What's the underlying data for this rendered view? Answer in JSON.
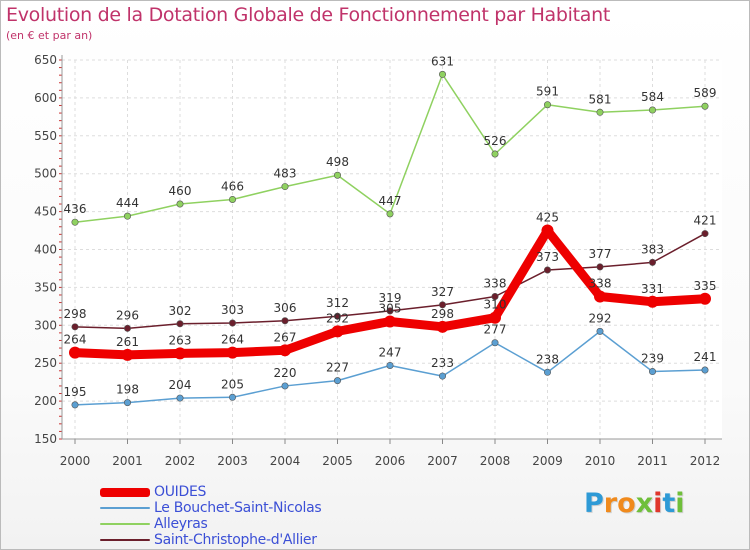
{
  "title": "Evolution de la Dotation Globale de Fonctionnement par Habitant",
  "subtitle": "(en € et par an)",
  "logo": {
    "letters": [
      "P",
      "r",
      "o",
      "x",
      "i",
      "t",
      "i"
    ],
    "colors": [
      "#2e9ad6",
      "#f08a1c",
      "#f08a1c",
      "#6fbf3a",
      "#e0362c",
      "#2e9ad6",
      "#6fbf3a"
    ]
  },
  "chart_data": {
    "type": "line",
    "title": "Evolution de la Dotation Globale de Fonctionnement par Habitant",
    "subtitle": "(en € et par an)",
    "xlabel": "",
    "ylabel": "",
    "ylim": [
      150,
      650
    ],
    "yticks": [
      "150",
      "200",
      "250",
      "300",
      "350",
      "400",
      "450",
      "500",
      "550",
      "600",
      "650"
    ],
    "categories": [
      "2000",
      "2001",
      "2002",
      "2003",
      "2004",
      "2005",
      "2006",
      "2007",
      "2008",
      "2009",
      "2010",
      "2011",
      "2012"
    ],
    "grid": true,
    "legend_position": "bottom-left",
    "series": [
      {
        "name": "OUIDES",
        "values": [
          264,
          261,
          263,
          264,
          267,
          292,
          305,
          298,
          310,
          425,
          338,
          331,
          335
        ],
        "labels": [
          "264",
          "261",
          "263",
          "264",
          "267",
          "292",
          "305",
          "298",
          "310",
          "425",
          "338",
          "331",
          "335"
        ],
        "color": "#ee0000",
        "width": 9
      },
      {
        "name": "Le Bouchet-Saint-Nicolas",
        "values": [
          195,
          198,
          204,
          205,
          220,
          227,
          247,
          233,
          277,
          238,
          292,
          239,
          241
        ],
        "labels": [
          "195",
          "198",
          "204",
          "205",
          "220",
          "227",
          "247",
          "233",
          "277",
          "238",
          "292",
          "239",
          "241"
        ],
        "color": "#5b9fd2",
        "width": 1.5
      },
      {
        "name": "Alleyras",
        "values": [
          436,
          444,
          460,
          466,
          483,
          498,
          447,
          631,
          526,
          591,
          581,
          584,
          589
        ],
        "labels": [
          "436",
          "444",
          "460",
          "466",
          "483",
          "498",
          "447",
          "631",
          "526",
          "591",
          "581",
          "584",
          "589"
        ],
        "color": "#8fd160",
        "width": 1.5
      },
      {
        "name": "Saint-Christophe-d'Allier",
        "values": [
          298,
          296,
          302,
          303,
          306,
          312,
          319,
          327,
          338,
          373,
          377,
          383,
          421
        ],
        "labels": [
          "298",
          "296",
          "302",
          "303",
          "306",
          "312",
          "319",
          "327",
          "338",
          "373",
          "377",
          "383",
          "421"
        ],
        "color": "#6b1f2c",
        "width": 1.5
      }
    ]
  }
}
